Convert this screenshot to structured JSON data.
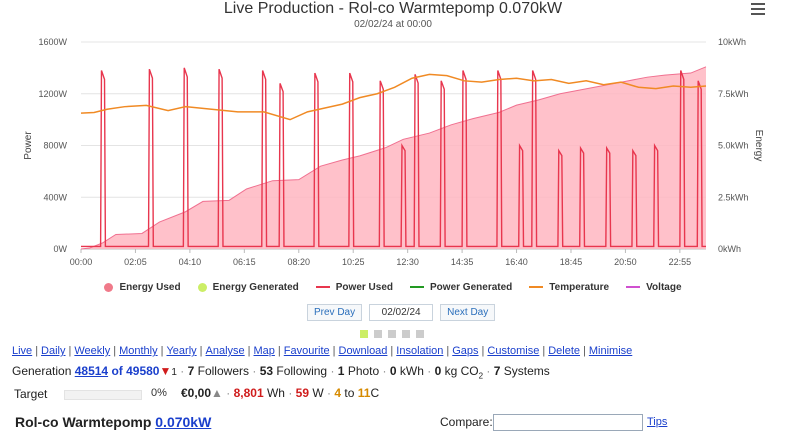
{
  "page": {
    "title": "Live Production - Rol-co Warmtepomp 0.070kW",
    "subtitle": "02/02/24 at 00:00",
    "menu_icon": "hamburger-menu-icon"
  },
  "chart_data": {
    "type": "line",
    "title": "Live Production - Rol-co Warmtepomp 0.070kW",
    "subtitle": "02/02/24 at 00:00",
    "ylabel": "Power",
    "y2label": "Energy",
    "ylim": [
      0,
      1600
    ],
    "y2lim": [
      0,
      10
    ],
    "yticks": [
      "0W",
      "400W",
      "800W",
      "1200W",
      "1600W"
    ],
    "y2ticks": [
      "0kWh",
      "2.5kWh",
      "5.0kWh",
      "7.5kWh",
      "10kWh"
    ],
    "xticks": [
      "00:00",
      "02:05",
      "04:10",
      "06:15",
      "08:20",
      "10:25",
      "12:30",
      "14:35",
      "16:40",
      "18:45",
      "20:50",
      "22:55"
    ],
    "x_unit": "minutes since midnight",
    "xlim": [
      0,
      1435
    ],
    "grid": true,
    "legend": [
      "Energy Used",
      "Energy Generated",
      "Power Used",
      "Power Generated",
      "Temperature",
      "Voltage"
    ],
    "legend_position": "bottom",
    "colors": {
      "energy_used_fill": "#ffb6c1",
      "energy_used_line": "#f07090",
      "energy_generated": "#ccee66",
      "power_used": "#e8364e",
      "power_generated": "#229922",
      "temperature": "#f08a24",
      "voltage": "#d050d0"
    },
    "energy_used_kwh": [
      [
        0,
        0.0
      ],
      [
        20,
        0.05
      ],
      [
        50,
        0.3
      ],
      [
        80,
        0.7
      ],
      [
        140,
        0.75
      ],
      [
        180,
        1.3
      ],
      [
        240,
        1.8
      ],
      [
        280,
        2.3
      ],
      [
        340,
        2.35
      ],
      [
        380,
        2.9
      ],
      [
        440,
        3.3
      ],
      [
        500,
        3.35
      ],
      [
        550,
        4.0
      ],
      [
        600,
        4.3
      ],
      [
        640,
        4.5
      ],
      [
        700,
        4.9
      ],
      [
        740,
        5.3
      ],
      [
        800,
        5.6
      ],
      [
        850,
        6.0
      ],
      [
        900,
        6.3
      ],
      [
        960,
        6.6
      ],
      [
        1000,
        6.95
      ],
      [
        1050,
        7.2
      ],
      [
        1100,
        7.5
      ],
      [
        1150,
        7.7
      ],
      [
        1200,
        7.9
      ],
      [
        1250,
        8.1
      ],
      [
        1300,
        8.3
      ],
      [
        1340,
        8.4
      ],
      [
        1400,
        8.5
      ],
      [
        1435,
        8.8
      ]
    ],
    "power_spikes_w": {
      "base_w": 20,
      "peaks": [
        [
          50,
          1380
        ],
        [
          160,
          1390
        ],
        [
          240,
          1400
        ],
        [
          320,
          1390
        ],
        [
          420,
          1380
        ],
        [
          460,
          1280
        ],
        [
          540,
          1360
        ],
        [
          620,
          1360
        ],
        [
          690,
          1300
        ],
        [
          740,
          800
        ],
        [
          770,
          1350
        ],
        [
          830,
          1300
        ],
        [
          880,
          1380
        ],
        [
          960,
          1380
        ],
        [
          1010,
          800
        ],
        [
          1040,
          1380
        ],
        [
          1100,
          760
        ],
        [
          1150,
          780
        ],
        [
          1210,
          780
        ],
        [
          1270,
          760
        ],
        [
          1320,
          800
        ],
        [
          1380,
          1380
        ],
        [
          1420,
          1300
        ]
      ]
    },
    "temperature_w_axis": [
      [
        0,
        1050
      ],
      [
        30,
        1055
      ],
      [
        60,
        1080
      ],
      [
        100,
        1100
      ],
      [
        150,
        1110
      ],
      [
        200,
        1070
      ],
      [
        240,
        1100
      ],
      [
        300,
        1080
      ],
      [
        360,
        1060
      ],
      [
        420,
        1060
      ],
      [
        480,
        1000
      ],
      [
        520,
        1060
      ],
      [
        560,
        1090
      ],
      [
        600,
        1120
      ],
      [
        640,
        1170
      ],
      [
        680,
        1200
      ],
      [
        720,
        1250
      ],
      [
        760,
        1320
      ],
      [
        800,
        1350
      ],
      [
        840,
        1340
      ],
      [
        880,
        1300
      ],
      [
        920,
        1290
      ],
      [
        960,
        1310
      ],
      [
        1000,
        1320
      ],
      [
        1040,
        1300
      ],
      [
        1080,
        1310
      ],
      [
        1120,
        1280
      ],
      [
        1160,
        1300
      ],
      [
        1200,
        1270
      ],
      [
        1240,
        1290
      ],
      [
        1280,
        1250
      ],
      [
        1320,
        1240
      ],
      [
        1360,
        1260
      ],
      [
        1400,
        1250
      ],
      [
        1435,
        1260
      ]
    ]
  },
  "nav": {
    "prev": "Prev Day",
    "date": "02/02/24",
    "next": "Next Day",
    "pager": [
      true,
      false,
      false,
      false,
      false
    ]
  },
  "menu": [
    "Live",
    "Daily",
    "Weekly",
    "Monthly",
    "Yearly",
    "Analyse",
    "Map",
    "Favourite",
    "Download",
    "Insolation",
    "Gaps",
    "Customise",
    "Delete",
    "Minimise"
  ],
  "stats": {
    "generation_label": "Generation",
    "generation_value": "48514",
    "generation_of": "of 49580",
    "trend_icon": "red-down-triangle-icon",
    "rank_change": "1",
    "followers_count": "7",
    "followers_label": "Followers",
    "following_count": "53",
    "following_label": "Following",
    "photo_count": "1",
    "photo_label": "Photo",
    "kwh_value": "0",
    "kwh_label": "kWh",
    "co2_value": "0",
    "co2_label": "kg CO",
    "co2_sub": "2",
    "systems_count": "7",
    "systems_label": "Systems"
  },
  "target": {
    "label": "Target",
    "percent": "0%",
    "fraction": 0.0,
    "money": "€0,00",
    "wh": "8,801",
    "wh_unit": "Wh",
    "w": "59",
    "w_unit": "W",
    "temp_low": "4",
    "to_label": "to",
    "temp_high": "11",
    "temp_unit": "C"
  },
  "system": {
    "name": "Rol-co Warmtepomp",
    "power": "0.070kW",
    "compare_label": "Compare:",
    "compare_value": "",
    "tips": "Tips"
  }
}
